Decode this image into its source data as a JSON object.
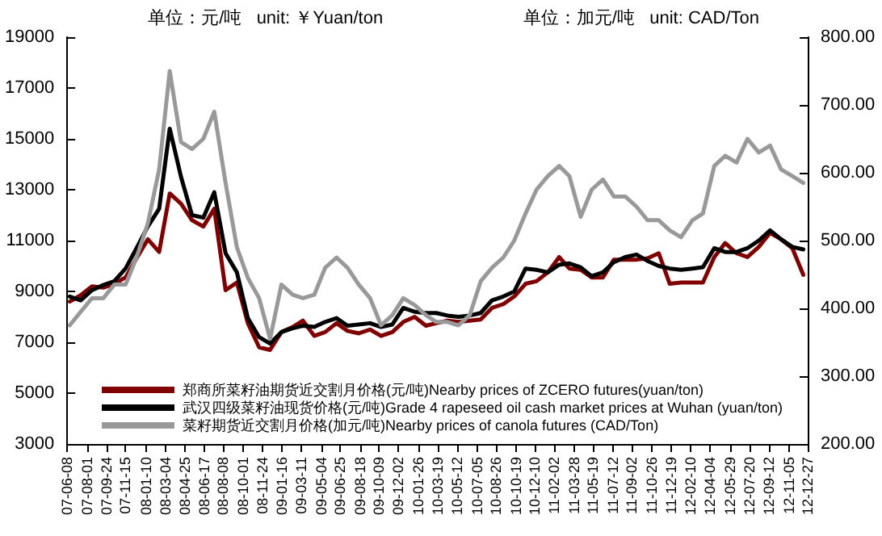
{
  "chart_data": {
    "type": "line",
    "ylabel": "单位：元/吨   unit: ￥Yuan/ton",
    "y2label": "单位：加元/吨   unit: CAD/Ton",
    "x": [
      "2007-06-15",
      "2007-07-15",
      "2007-08-15",
      "2007-09-15",
      "2007-10-15",
      "2007-11-15",
      "2007-12-15",
      "2008-01-15",
      "2008-02-15",
      "2008-03-15",
      "2008-04-15",
      "2008-05-15",
      "2008-06-15",
      "2008-07-15",
      "2008-08-15",
      "2008-09-15",
      "2008-10-15",
      "2008-11-15",
      "2008-12-15",
      "2009-01-15",
      "2009-02-15",
      "2009-03-15",
      "2009-04-15",
      "2009-05-15",
      "2009-06-15",
      "2009-07-15",
      "2009-08-15",
      "2009-09-15",
      "2009-10-15",
      "2009-11-15",
      "2009-12-15",
      "2010-01-15",
      "2010-02-15",
      "2010-03-15",
      "2010-04-15",
      "2010-05-15",
      "2010-06-15",
      "2010-07-15",
      "2010-08-15",
      "2010-09-15",
      "2010-10-15",
      "2010-11-15",
      "2010-12-15",
      "2011-01-15",
      "2011-02-15",
      "2011-03-15",
      "2011-04-15",
      "2011-05-15",
      "2011-06-15",
      "2011-07-15",
      "2011-08-15",
      "2011-09-15",
      "2011-10-15",
      "2011-11-15",
      "2011-12-15",
      "2012-01-15",
      "2012-02-15",
      "2012-03-15",
      "2012-04-15",
      "2012-05-15",
      "2012-06-15",
      "2012-07-15",
      "2012-08-15",
      "2012-09-15",
      "2012-10-15",
      "2012-11-15",
      "2012-12-15"
    ],
    "series": [
      {
        "name": "郑商所菜籽油期货近交割月价格(元/吨)Nearby prices of ZCERO futures(yuan/ton)",
        "color": "#800000",
        "values": [
          8600,
          8850,
          9200,
          9150,
          9300,
          9550,
          10300,
          11050,
          10550,
          12850,
          12450,
          11800,
          11550,
          12250,
          9050,
          9350,
          7750,
          6800,
          6700,
          7400,
          7600,
          7850,
          7250,
          7400,
          7750,
          7450,
          7350,
          7500,
          7250,
          7400,
          7800,
          8000,
          7650,
          7750,
          7850,
          7800,
          7850,
          7900,
          8350,
          8500,
          8800,
          9300,
          9400,
          9750,
          10350,
          9900,
          9850,
          9550,
          9550,
          10250,
          10250,
          10250,
          10300,
          10500,
          9300,
          9350,
          9350,
          9350,
          10350,
          10900,
          10500,
          10350,
          10750,
          11300,
          11050,
          10700,
          9650
        ]
      },
      {
        "name": "武汉四级菜籽油现货价格(元/吨)Grade 4 rapeseed oil cash market prices at Wuhan (yuan/ton)",
        "color": "#000000",
        "values": [
          8800,
          8650,
          9050,
          9250,
          9400,
          9900,
          10700,
          11550,
          12250,
          15400,
          13500,
          12000,
          11900,
          12900,
          10500,
          9750,
          7950,
          7200,
          6950,
          7400,
          7550,
          7650,
          7600,
          7800,
          7950,
          7650,
          7700,
          7750,
          7600,
          7700,
          8350,
          8200,
          8150,
          8150,
          8050,
          8000,
          8050,
          8150,
          8650,
          8800,
          9000,
          9900,
          9850,
          9750,
          10050,
          10100,
          9950,
          9600,
          9750,
          10150,
          10350,
          10450,
          10200,
          10000,
          9900,
          9850,
          9900,
          9950,
          10700,
          10550,
          10550,
          10700,
          11000,
          11400,
          11050,
          10750,
          10650
        ]
      },
      {
        "name": "菜籽期货近交割月价格(加元/吨)Nearby prices of canola futures (CAD/Ton)",
        "color": "#999999",
        "axis": "y2",
        "values": [
          375,
          395,
          415,
          415,
          435,
          435,
          475,
          525,
          605,
          750,
          645,
          635,
          650,
          690,
          585,
          490,
          445,
          415,
          355,
          435,
          420,
          415,
          420,
          460,
          475,
          460,
          435,
          415,
          375,
          390,
          415,
          405,
          390,
          380,
          380,
          375,
          390,
          440,
          460,
          475,
          500,
          540,
          575,
          595,
          610,
          595,
          535,
          575,
          590,
          565,
          565,
          550,
          530,
          530,
          515,
          505,
          530,
          540,
          610,
          625,
          615,
          650,
          630,
          640,
          605,
          595,
          585
        ]
      }
    ],
    "xlim": [
      "2007-06-08",
      "2012-12-27"
    ],
    "xticks": [
      {
        "value": "2007-06-08",
        "label": "07-06-08"
      },
      {
        "value": "2007-08-01",
        "label": "07-08-01"
      },
      {
        "value": "2007-09-24",
        "label": "07-09-24"
      },
      {
        "value": "2007-11-15",
        "label": "07-11-15"
      },
      {
        "value": "2008-01-10",
        "label": "08-01-10"
      },
      {
        "value": "2008-03-04",
        "label": "08-03-04"
      },
      {
        "value": "2008-04-25",
        "label": "08-04-25"
      },
      {
        "value": "2008-06-17",
        "label": "08-06-17"
      },
      {
        "value": "2008-08-08",
        "label": "08-08-08"
      },
      {
        "value": "2008-10-01",
        "label": "08-10-01"
      },
      {
        "value": "2008-11-24",
        "label": "08-11-24"
      },
      {
        "value": "2009-01-16",
        "label": "09-01-16"
      },
      {
        "value": "2009-03-11",
        "label": "09-03-11"
      },
      {
        "value": "2009-05-04",
        "label": "09-05-04"
      },
      {
        "value": "2009-06-25",
        "label": "09-06-25"
      },
      {
        "value": "2009-08-18",
        "label": "09-08-18"
      },
      {
        "value": "2009-10-09",
        "label": "09-10-09"
      },
      {
        "value": "2009-12-02",
        "label": "09-12-02"
      },
      {
        "value": "2010-01-26",
        "label": "10-01-26"
      },
      {
        "value": "2010-03-19",
        "label": "10-03-19"
      },
      {
        "value": "2010-05-12",
        "label": "10-05-12"
      },
      {
        "value": "2010-07-05",
        "label": "10-07-05"
      },
      {
        "value": "2010-08-26",
        "label": "10-08-26"
      },
      {
        "value": "2010-10-19",
        "label": "10-10-19"
      },
      {
        "value": "2010-12-10",
        "label": "10-12-10"
      },
      {
        "value": "2011-02-02",
        "label": "11-02-02"
      },
      {
        "value": "2011-03-28",
        "label": "11-03-28"
      },
      {
        "value": "2011-05-19",
        "label": "11-05-19"
      },
      {
        "value": "2011-07-12",
        "label": "11-07-12"
      },
      {
        "value": "2011-09-02",
        "label": "11-09-02"
      },
      {
        "value": "2011-10-26",
        "label": "11-10-26"
      },
      {
        "value": "2011-12-19",
        "label": "11-12-19"
      },
      {
        "value": "2012-02-10",
        "label": "12-02-10"
      },
      {
        "value": "2012-04-04",
        "label": "12-04-04"
      },
      {
        "value": "2012-05-29",
        "label": "12-05-29"
      },
      {
        "value": "2012-07-20",
        "label": "12-07-20"
      },
      {
        "value": "2012-09-12",
        "label": "12-09-12"
      },
      {
        "value": "2012-11-05",
        "label": "12-11-05"
      },
      {
        "value": "2012-12-27",
        "label": "12-12-27"
      }
    ],
    "ylim": [
      3000,
      19000
    ],
    "yticks": [
      3000,
      5000,
      7000,
      9000,
      11000,
      13000,
      15000,
      17000,
      19000
    ],
    "y2lim": [
      200,
      800
    ],
    "y2ticks": [
      {
        "value": 200,
        "label": "200.00"
      },
      {
        "value": 300,
        "label": "300.00"
      },
      {
        "value": 400,
        "label": "400.00"
      },
      {
        "value": 500,
        "label": "500.00"
      },
      {
        "value": 600,
        "label": "600.00"
      },
      {
        "value": 700,
        "label": "700.00"
      },
      {
        "value": 800,
        "label": "800.00"
      }
    ],
    "grid": false,
    "legend": "bottom left",
    "marker": "none",
    "line_style": "solid"
  }
}
